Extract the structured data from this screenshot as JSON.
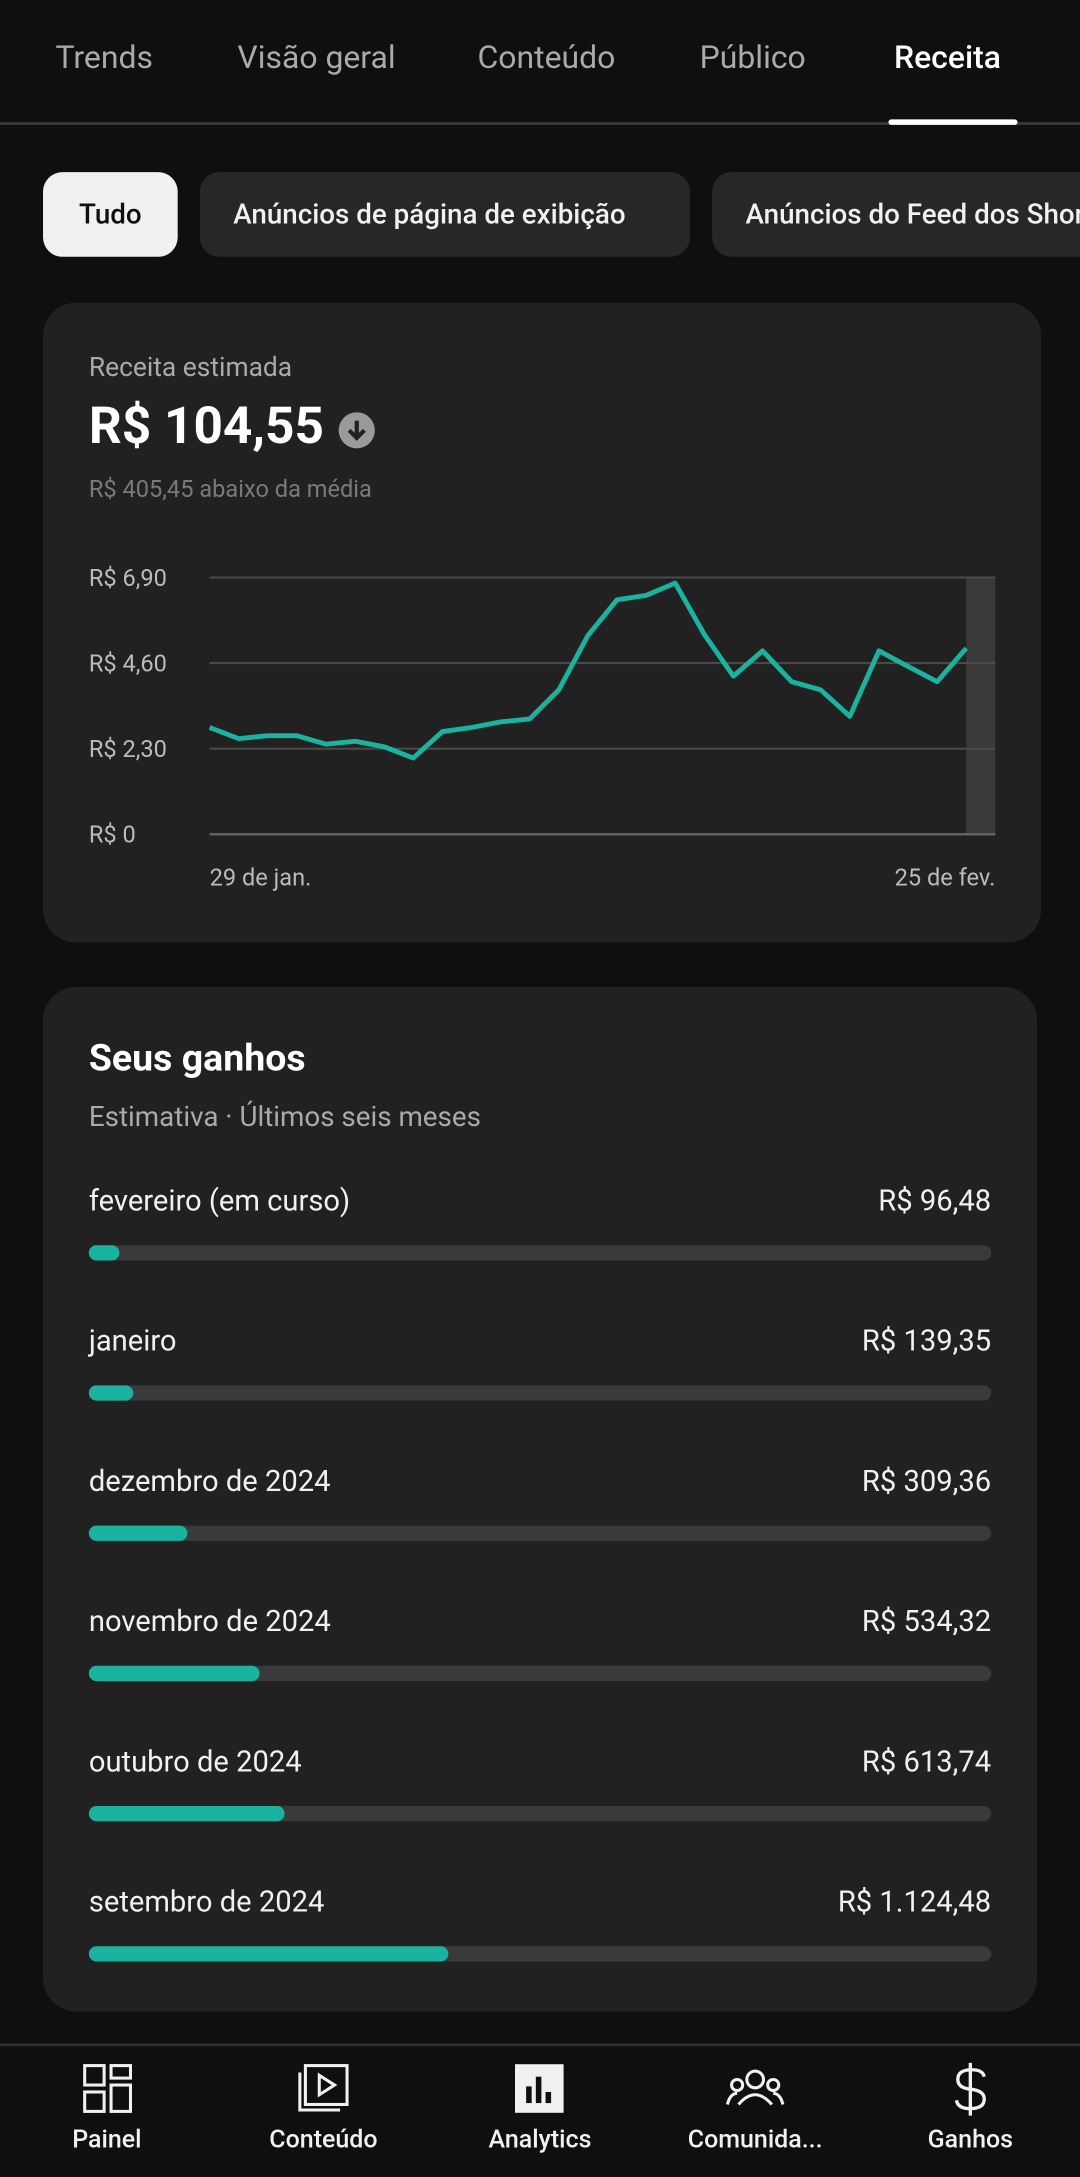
{
  "tabs": [
    "Trends",
    "Visão geral",
    "Conteúdo",
    "Público",
    "Receita"
  ],
  "chips": [
    "Tudo",
    "Anúncios de página de exibição",
    "Anúncios do Feed dos Shorts"
  ],
  "revenue": {
    "label": "Receita estimada",
    "amount": "R$ 104,55",
    "comparison": "R$ 405,45 abaixo da média",
    "chart_data": {
      "type": "line",
      "categories": [
        "29 de jan.",
        null,
        null,
        null,
        null,
        null,
        null,
        null,
        null,
        null,
        null,
        null,
        null,
        null,
        null,
        null,
        null,
        null,
        null,
        null,
        null,
        null,
        null,
        null,
        null,
        null,
        null,
        "25 de fev."
      ],
      "series": [
        {
          "color": "#1ab3a0",
          "values": [
            2.87,
            2.57,
            2.65,
            2.65,
            2.42,
            2.5,
            2.35,
            2.05,
            2.76,
            2.87,
            3.02,
            3.1,
            3.88,
            5.34,
            6.3,
            6.42,
            6.75,
            5.37,
            4.25,
            4.93,
            4.1,
            3.88,
            3.17,
            4.93,
            4.51,
            4.1,
            5.0,
            null
          ]
        }
      ],
      "ylim": [
        0,
        6.9
      ],
      "yticks": [
        {
          "value": 0,
          "label": "R$ 0"
        },
        {
          "value": 2.3,
          "label": "R$ 2,30"
        },
        {
          "value": 4.6,
          "label": "R$ 4,60"
        },
        {
          "value": 6.9,
          "label": "R$ 6,90"
        }
      ],
      "grid": true
    }
  },
  "earnings": {
    "title": "Seus ganhos",
    "subtitle": "Estimativa · Últimos seis meses",
    "xlim": [
      0,
      2825
    ],
    "color": "#1ab3a0",
    "rows": [
      {
        "label": "fevereiro (em curso)",
        "value": 96.48,
        "value_label": "R$ 96,48"
      },
      {
        "label": "janeiro",
        "value": 139.35,
        "value_label": "R$ 139,35"
      },
      {
        "label": "dezembro de 2024",
        "value": 309.36,
        "value_label": "R$ 309,36"
      },
      {
        "label": "novembro de 2024",
        "value": 534.32,
        "value_label": "R$ 534,32"
      },
      {
        "label": "outubro de 2024",
        "value": 613.74,
        "value_label": "R$ 613,74"
      },
      {
        "label": "setembro de 2024",
        "value": 1124.48,
        "value_label": "R$ 1.124,48"
      }
    ]
  },
  "nav": [
    "Painel",
    "Conteúdo",
    "Analytics",
    "Comunida...",
    "Ganhos"
  ]
}
